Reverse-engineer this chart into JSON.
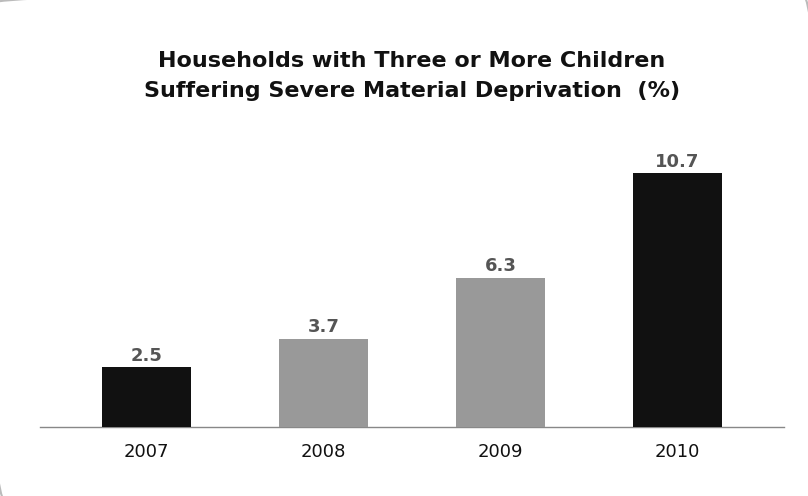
{
  "categories": [
    "2007",
    "2008",
    "2009",
    "2010"
  ],
  "values": [
    2.5,
    3.7,
    6.3,
    10.7
  ],
  "bar_colors": [
    "#111111",
    "#999999",
    "#999999",
    "#111111"
  ],
  "labels": [
    "2.5",
    "3.7",
    "6.3",
    "10.7"
  ],
  "title_line1": "Households with Three or More Children",
  "title_line2": "Suffering Severe Material Deprivation  (%)",
  "title_fontsize": 16,
  "label_fontsize": 13,
  "tick_fontsize": 13,
  "background_color": "#ffffff",
  "ylim": [
    0,
    13.0
  ],
  "bar_width": 0.5
}
